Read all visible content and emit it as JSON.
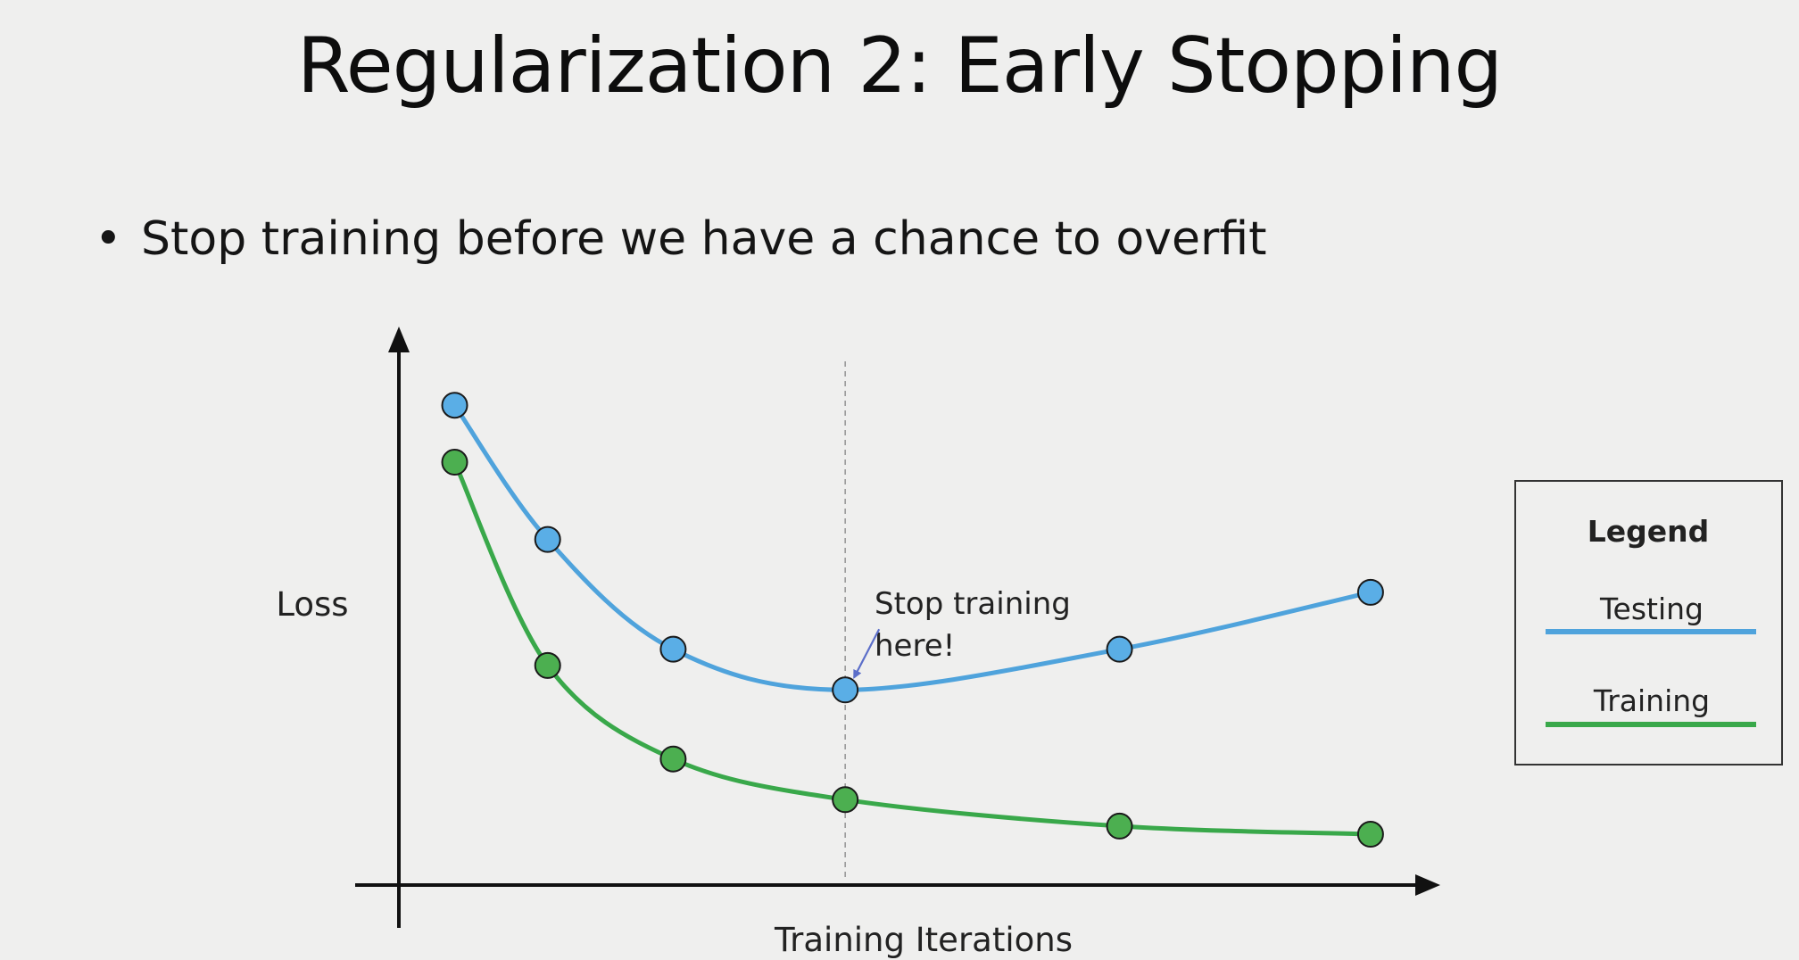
{
  "slide": {
    "title": "Regularization 2: Early Stopping",
    "bullet_marker": "•",
    "bullet": "Stop training before we have a chance to overfit"
  },
  "chart_data": {
    "type": "line",
    "xlabel": "Training Iterations",
    "ylabel": "Loss",
    "axis_ticks": "none",
    "grid": false,
    "legend_title": "Legend",
    "legend_position": "right",
    "series": [
      {
        "name": "Testing",
        "color": "#4fa3dc",
        "marker_color": "#5aaee6",
        "points": [
          [
            0.3,
            10.9
          ],
          [
            2.3,
            7.6
          ],
          [
            5.0,
            4.9
          ],
          [
            8.7,
            3.9
          ],
          [
            14.6,
            4.9
          ],
          [
            20.0,
            6.3
          ]
        ]
      },
      {
        "name": "Training",
        "color": "#39a84a",
        "marker_color": "#4caf50",
        "points": [
          [
            0.3,
            9.5
          ],
          [
            2.3,
            4.5
          ],
          [
            5.0,
            2.2
          ],
          [
            8.7,
            1.2
          ],
          [
            14.6,
            0.55
          ],
          [
            20.0,
            0.35
          ]
        ]
      }
    ],
    "annotation": {
      "lines": [
        "Stop training",
        "here!"
      ],
      "at_x": 8.7,
      "arrow_color": "#5b6ec9"
    },
    "vline": {
      "x": 8.7,
      "style": "dashed",
      "color": "#9a9a9a"
    },
    "xlim": [
      -0.9,
      21.0
    ],
    "ylim": [
      -0.9,
      12.2
    ]
  }
}
